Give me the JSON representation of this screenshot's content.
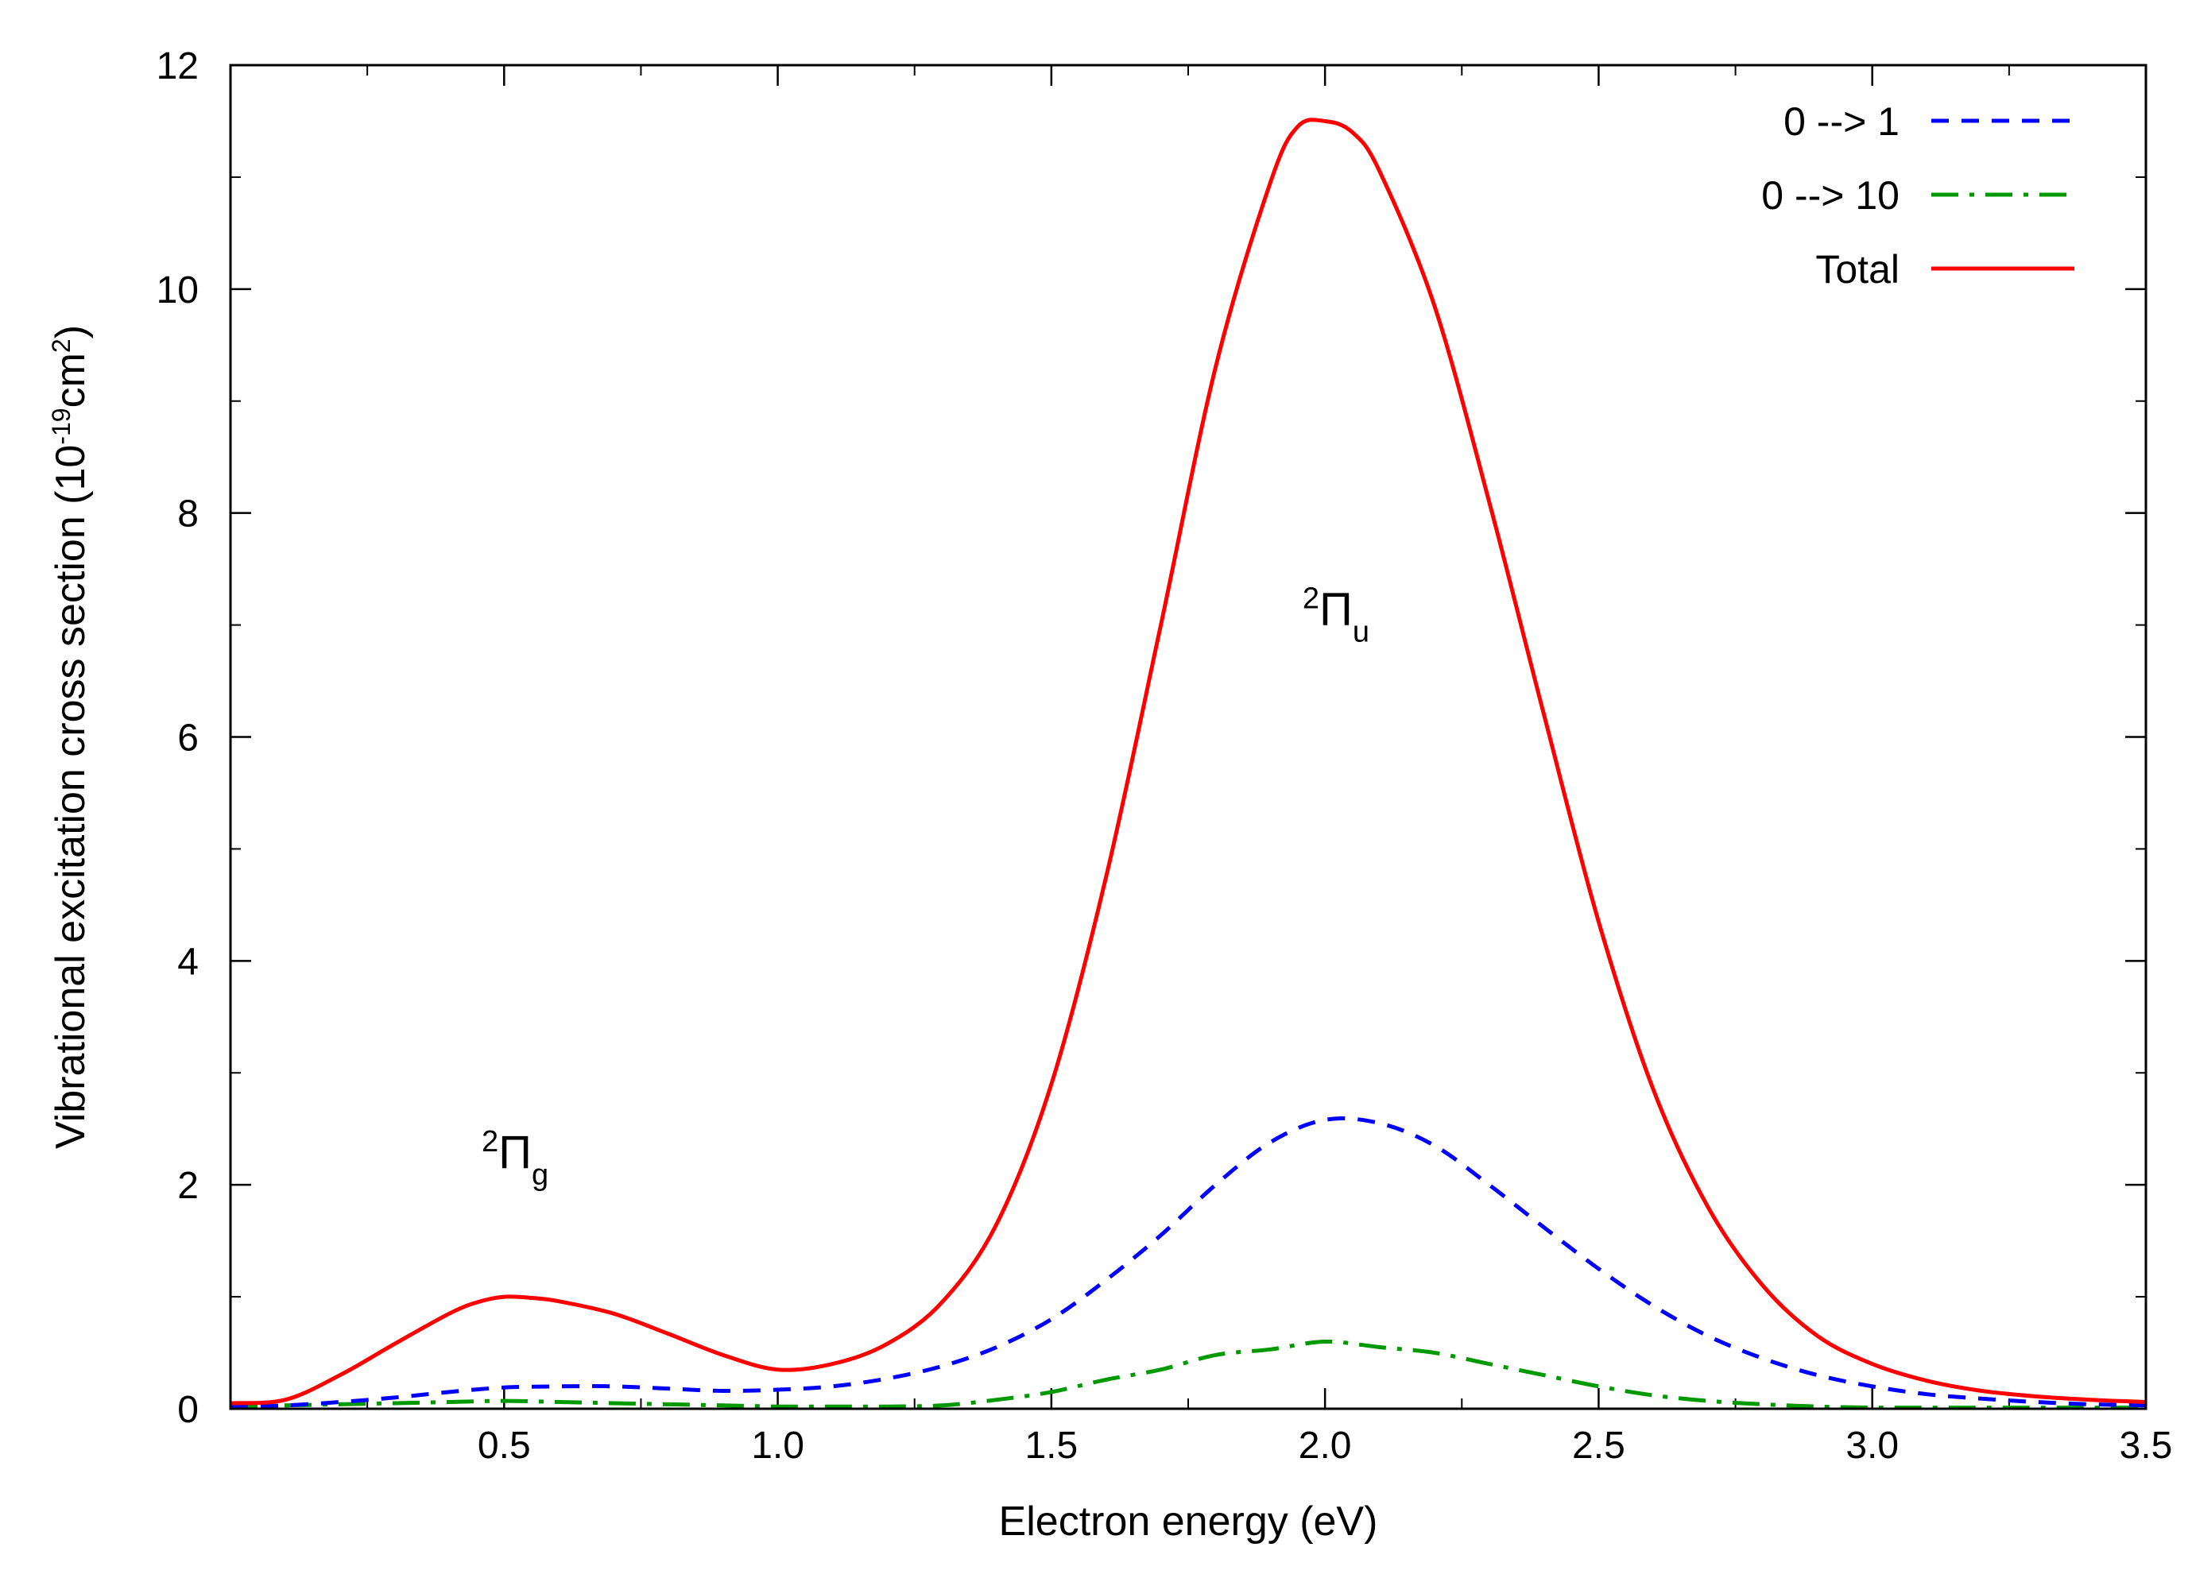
{
  "chart_data": {
    "type": "line",
    "title": "",
    "xlabel": "Electron energy (eV)",
    "ylabel": {
      "text": "Vibrational excitation cross section (10",
      "exp1": "-19",
      "mid": "cm",
      "exp2": "2",
      "end": ")"
    },
    "xlim": [
      0.0,
      3.5
    ],
    "ylim": [
      0,
      12
    ],
    "x_ticks": [
      0.5,
      1.0,
      1.5,
      2.0,
      2.5,
      3.0,
      3.5
    ],
    "x_tick_labels": [
      "0.5",
      "1.0",
      "1.5",
      "2.0",
      "2.5",
      "3.0",
      "3.5"
    ],
    "y_ticks": [
      0,
      2,
      4,
      6,
      8,
      10,
      12
    ],
    "y_tick_labels": [
      "0",
      "2",
      "4",
      "6",
      "8",
      "10",
      "12"
    ],
    "grid": false,
    "legend_position": "top-right",
    "series": [
      {
        "name": "0 --> 1",
        "color": "#0000ff",
        "style": "dashed",
        "x": [
          0.0,
          0.1,
          0.2,
          0.3,
          0.4,
          0.5,
          0.6,
          0.7,
          0.8,
          0.9,
          1.0,
          1.1,
          1.2,
          1.3,
          1.4,
          1.5,
          1.6,
          1.7,
          1.8,
          1.9,
          2.0,
          2.1,
          2.2,
          2.3,
          2.4,
          2.5,
          2.6,
          2.7,
          2.8,
          2.9,
          3.0,
          3.1,
          3.2,
          3.3,
          3.4,
          3.5
        ],
        "y": [
          0.02,
          0.03,
          0.06,
          0.1,
          0.15,
          0.19,
          0.2,
          0.2,
          0.18,
          0.16,
          0.17,
          0.2,
          0.27,
          0.38,
          0.55,
          0.8,
          1.15,
          1.55,
          2.0,
          2.38,
          2.58,
          2.55,
          2.35,
          2.0,
          1.62,
          1.25,
          0.92,
          0.65,
          0.45,
          0.3,
          0.2,
          0.13,
          0.09,
          0.06,
          0.04,
          0.03
        ]
      },
      {
        "name": "0 --> 10",
        "color": "#009900",
        "style": "dashdot",
        "x": [
          0.0,
          0.1,
          0.2,
          0.3,
          0.4,
          0.5,
          0.6,
          0.7,
          0.8,
          0.9,
          1.0,
          1.1,
          1.2,
          1.3,
          1.4,
          1.5,
          1.6,
          1.7,
          1.8,
          1.9,
          2.0,
          2.1,
          2.2,
          2.3,
          2.4,
          2.5,
          2.6,
          2.7,
          2.8,
          2.9,
          3.0,
          3.1,
          3.2,
          3.3,
          3.4,
          3.5
        ],
        "y": [
          0.02,
          0.03,
          0.04,
          0.05,
          0.06,
          0.07,
          0.06,
          0.05,
          0.04,
          0.03,
          0.02,
          0.02,
          0.02,
          0.03,
          0.08,
          0.15,
          0.26,
          0.35,
          0.48,
          0.53,
          0.6,
          0.55,
          0.5,
          0.4,
          0.3,
          0.2,
          0.12,
          0.07,
          0.04,
          0.02,
          0.01,
          0.01,
          0.01,
          0.01,
          0.01,
          0.01
        ]
      },
      {
        "name": "Total",
        "color": "#ff0000",
        "style": "solid",
        "x": [
          0.0,
          0.1,
          0.2,
          0.3,
          0.4,
          0.45,
          0.5,
          0.55,
          0.6,
          0.7,
          0.8,
          0.9,
          1.0,
          1.1,
          1.2,
          1.3,
          1.4,
          1.5,
          1.6,
          1.7,
          1.8,
          1.9,
          1.95,
          2.0,
          2.05,
          2.1,
          2.2,
          2.3,
          2.4,
          2.5,
          2.6,
          2.7,
          2.8,
          2.9,
          3.0,
          3.1,
          3.2,
          3.3,
          3.4,
          3.5
        ],
        "y": [
          0.05,
          0.08,
          0.3,
          0.58,
          0.85,
          0.95,
          1.0,
          0.99,
          0.96,
          0.85,
          0.67,
          0.48,
          0.35,
          0.4,
          0.58,
          0.95,
          1.65,
          2.9,
          4.75,
          7.0,
          9.3,
          10.95,
          11.45,
          11.5,
          11.4,
          11.05,
          9.85,
          8.1,
          6.2,
          4.35,
          2.85,
          1.8,
          1.1,
          0.65,
          0.4,
          0.25,
          0.16,
          0.11,
          0.08,
          0.06
        ]
      }
    ],
    "annotations": [
      {
        "sup": "2",
        "base": "Π",
        "sub": "g",
        "x": 0.52,
        "y": 2.15
      },
      {
        "sup": "2",
        "base": "Π",
        "sub": "u",
        "x": 2.02,
        "y": 7.0
      }
    ]
  }
}
